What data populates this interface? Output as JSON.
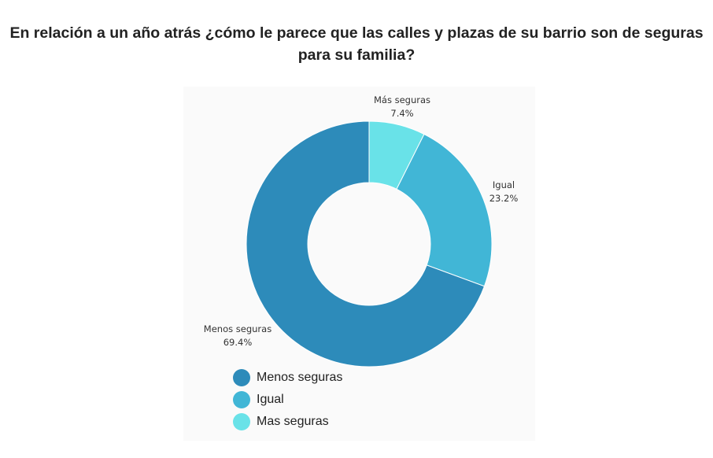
{
  "title": {
    "line1": "En relación a un año atrás ¿cómo le parece que las calles y plazas de su barrio son de seguras",
    "line2": "para su familia?"
  },
  "chart_data": {
    "type": "pie",
    "donut": true,
    "title": "En relación a un año atrás ¿cómo le parece que las calles y plazas de su barrio son de seguras para su familia?",
    "slices": [
      {
        "label": "Más seguras",
        "value_label": "7.4%",
        "value": 7.4,
        "color": "#69e2e8"
      },
      {
        "label": "Igual",
        "value_label": "23.2%",
        "value": 23.2,
        "color": "#41b6d6"
      },
      {
        "label": "Menos seguras",
        "value_label": "69.4%",
        "value": 69.4,
        "color": "#2d8bba"
      }
    ],
    "legend": {
      "position": "bottom-left",
      "items": [
        {
          "label": "Menos seguras",
          "color": "#2d8bba"
        },
        {
          "label": "Igual",
          "color": "#41b6d6"
        },
        {
          "label": "Mas seguras",
          "color": "#69e2e8"
        }
      ]
    }
  }
}
